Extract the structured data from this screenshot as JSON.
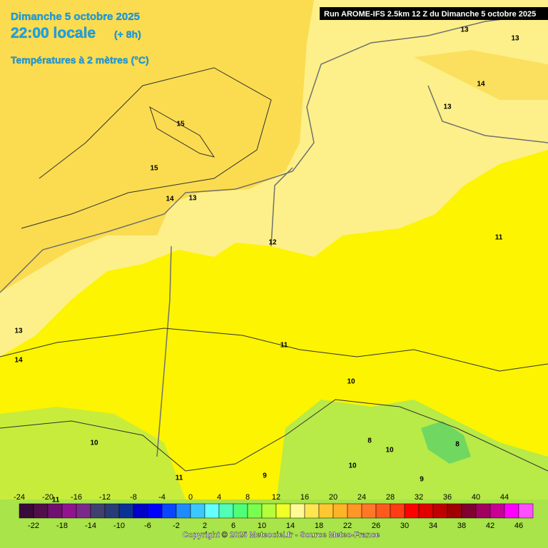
{
  "header": {
    "date": "Dimanche 5 octobre 2025",
    "time": "22:00 locale",
    "offset": "(+ 8h)",
    "field": "Températures à 2 mètres (°C)",
    "run": "Run AROME-IFS 2.5km 12 Z du Dimanche 5 octobre 2025"
  },
  "contour_labels": [
    "15",
    "15",
    "14",
    "13",
    "12",
    "13",
    "13",
    "14",
    "13",
    "11",
    "11",
    "10",
    "13",
    "14",
    "11",
    "10",
    "11",
    "9",
    "8",
    "10",
    "10",
    "9",
    "8"
  ],
  "colorbar": {
    "min": -24,
    "step": 2,
    "colors": [
      "#3a0a3a",
      "#50104a",
      "#701070",
      "#901490",
      "#7a2a8a",
      "#404070",
      "#283c78",
      "#0a3296",
      "#0000c8",
      "#0000ff",
      "#0a46ff",
      "#1e8cff",
      "#3cc8ff",
      "#64ffff",
      "#50ffb4",
      "#50ff78",
      "#78ff50",
      "#b4ff3c",
      "#f0ff28",
      "#fffa96",
      "#ffe650",
      "#ffc832",
      "#ffb428",
      "#ff9628",
      "#ff7828",
      "#ff5a1e",
      "#ff3c14",
      "#ff0000",
      "#e10000",
      "#c00000",
      "#a00000",
      "#800030",
      "#a00060",
      "#c80096",
      "#ff00ff",
      "#ff50ff"
    ],
    "ticks_top": [
      -24,
      -20,
      -16,
      -12,
      -8,
      -4,
      0,
      4,
      8,
      12,
      16,
      20,
      24,
      28,
      32,
      36,
      40,
      44
    ],
    "ticks_bottom": [
      -22,
      -18,
      -14,
      -10,
      -6,
      -2,
      2,
      6,
      10,
      14,
      18,
      22,
      26,
      30,
      34,
      38,
      42,
      46
    ]
  },
  "copyright": "Copyright © 2025 Meteociel.fr - Source Meteo-France"
}
